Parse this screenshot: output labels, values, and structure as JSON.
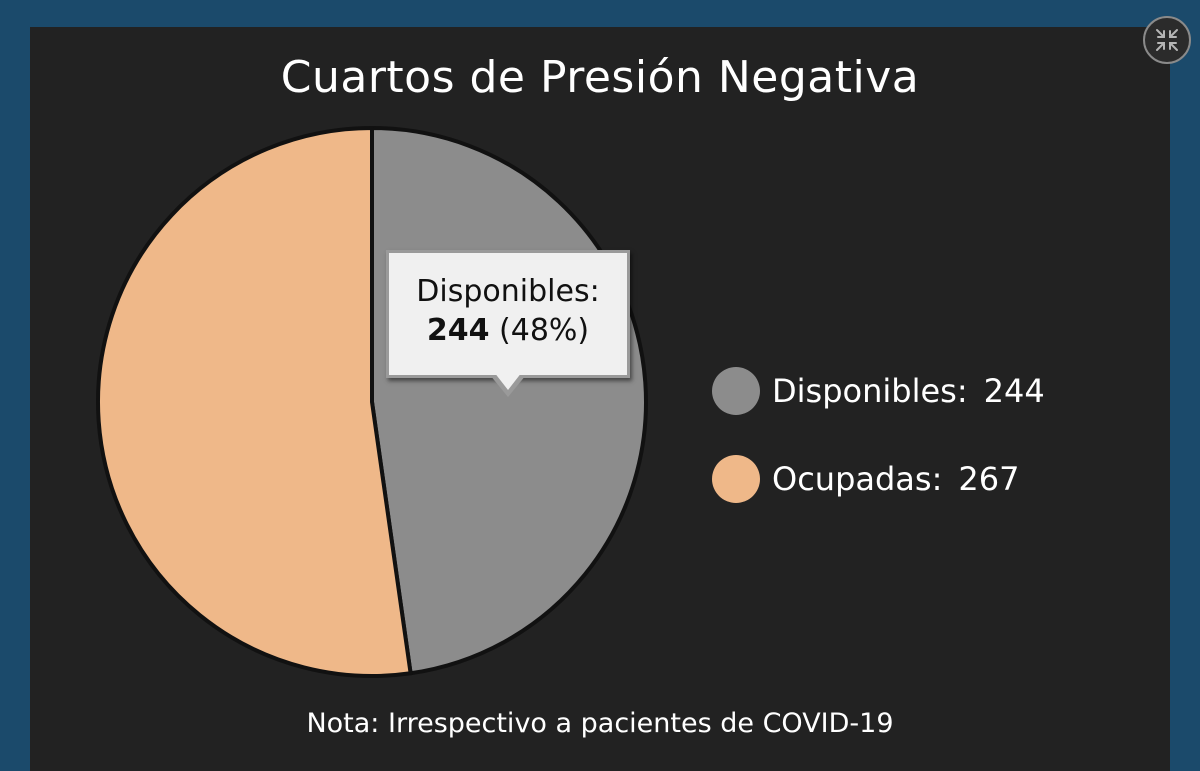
{
  "colors": {
    "outer": "#1b4a6b",
    "panel": "#222222",
    "disponibles": "#8c8c8c",
    "ocupadas": "#efb889"
  },
  "controls": {
    "collapse_icon": "collapse-arrows-icon"
  },
  "chart_data": {
    "type": "pie",
    "title": "Cuartos de Presión Negativa",
    "slices": [
      {
        "name": "Disponibles",
        "value": 244,
        "color": "#8c8c8c"
      },
      {
        "name": "Ocupadas",
        "value": 267,
        "color": "#efb889"
      }
    ],
    "legend": {
      "position": "right",
      "items": [
        {
          "label": "Disponibles:",
          "value": "244"
        },
        {
          "label": "Ocupadas:",
          "value": "267"
        }
      ]
    },
    "tooltip": {
      "label": "Disponibles:",
      "value": "244",
      "percent": "(48%)"
    },
    "note": "Nota: Irrespectivo a pacientes de COVID-19"
  }
}
